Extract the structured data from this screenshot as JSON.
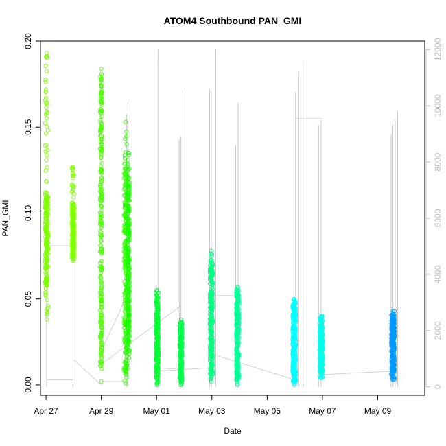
{
  "chart_data": {
    "type": "scatter",
    "title": "ATOM4 Southbound PAN_GMI",
    "xlabel": "Date",
    "ylabel": "PAN_GMI",
    "x_ticks": [
      {
        "label": "Apr 27",
        "day": 0
      },
      {
        "label": "Apr 29",
        "day": 2
      },
      {
        "label": "May 01",
        "day": 4
      },
      {
        "label": "May 03",
        "day": 6
      },
      {
        "label": "May 05",
        "day": 8
      },
      {
        "label": "May 07",
        "day": 10
      },
      {
        "label": "May 09",
        "day": 12
      }
    ],
    "xlim_days": [
      -0.2,
      13.7
    ],
    "ylim": [
      -0.006,
      0.2
    ],
    "y_ticks": [
      "0.00",
      "0.05",
      "0.10",
      "0.15",
      "0.20"
    ],
    "y2_ticks": [
      "0",
      "2000",
      "4000",
      "6000",
      "8000",
      "10000",
      "12000"
    ],
    "y2lim": [
      -300,
      12300
    ],
    "y2_color": "#bebebe",
    "grey_line_color": "#c8c8c8",
    "clusters": [
      {
        "center_day": 0.02,
        "min": 0.038,
        "max": 0.193,
        "core_min": 0.058,
        "core_max": 0.112,
        "color": "#7fff00",
        "dx": 0.055
      },
      {
        "center_day": 0.98,
        "min": 0.072,
        "max": 0.127,
        "core_min": 0.075,
        "core_max": 0.105,
        "color": "#7fff00",
        "dx": 0.04
      },
      {
        "center_day": 2.0,
        "min": 0.002,
        "max": 0.184,
        "core_min": 0.01,
        "core_max": 0.18,
        "color": "#4cff00",
        "dx": 0.04
      },
      {
        "center_day": 2.88,
        "min": 0.001,
        "max": 0.153,
        "core_min": 0.008,
        "core_max": 0.13,
        "color": "#33ff00",
        "dx": 0.05
      },
      {
        "center_day": 2.98,
        "min": 0.01,
        "max": 0.135,
        "core_min": 0.02,
        "core_max": 0.12,
        "color": "#1aff00",
        "dx": 0.04
      },
      {
        "center_day": 4.02,
        "min": 0.0,
        "max": 0.055,
        "core_min": 0.003,
        "core_max": 0.05,
        "color": "#00ff33",
        "dx": 0.05
      },
      {
        "center_day": 4.88,
        "min": 0.0,
        "max": 0.038,
        "core_min": 0.002,
        "core_max": 0.036,
        "color": "#00ff4c",
        "dx": 0.05
      },
      {
        "center_day": 5.98,
        "min": 0.002,
        "max": 0.078,
        "core_min": 0.005,
        "core_max": 0.073,
        "color": "#00ff80",
        "dx": 0.055
      },
      {
        "center_day": 6.93,
        "min": 0.0,
        "max": 0.057,
        "core_min": 0.003,
        "core_max": 0.055,
        "color": "#00ff99",
        "dx": 0.05
      },
      {
        "center_day": 8.98,
        "min": 0.0,
        "max": 0.05,
        "core_min": 0.002,
        "core_max": 0.048,
        "color": "#00ffff",
        "dx": 0.065
      },
      {
        "center_day": 9.95,
        "min": 0.004,
        "max": 0.04,
        "core_min": 0.006,
        "core_max": 0.038,
        "color": "#00ffea",
        "dx": 0.055
      },
      {
        "center_day": 12.55,
        "min": 0.003,
        "max": 0.043,
        "core_min": 0.006,
        "core_max": 0.041,
        "color": "#0099ff",
        "dx": 0.06
      }
    ],
    "grey_spikes": [
      {
        "day": 0.02,
        "top": 5000
      },
      {
        "day": 0.98,
        "top": 4900
      },
      {
        "day": 2.96,
        "top": 10100
      },
      {
        "day": 2.92,
        "top": 9700
      },
      {
        "day": 3.98,
        "top": 11600
      },
      {
        "day": 4.05,
        "top": 12000
      },
      {
        "day": 4.82,
        "top": 8800
      },
      {
        "day": 4.88,
        "top": 8900
      },
      {
        "day": 4.95,
        "top": 10600
      },
      {
        "day": 5.92,
        "top": 10600
      },
      {
        "day": 5.98,
        "top": 10500
      },
      {
        "day": 6.14,
        "top": 12000
      },
      {
        "day": 6.86,
        "top": 8600
      },
      {
        "day": 6.95,
        "top": 10100
      },
      {
        "day": 9.03,
        "top": 10500
      },
      {
        "day": 9.14,
        "top": 11200
      },
      {
        "day": 9.3,
        "top": 11600
      },
      {
        "day": 9.86,
        "top": 9300
      },
      {
        "day": 9.95,
        "top": 9500
      },
      {
        "day": 12.48,
        "top": 9000
      },
      {
        "day": 12.55,
        "top": 9300
      },
      {
        "day": 12.63,
        "top": 9500
      },
      {
        "day": 12.72,
        "top": 9800
      }
    ],
    "grey_connectors": [
      [
        [
          0.05,
          0.003
        ],
        [
          0.98,
          0.003
        ]
      ],
      [
        [
          0.98,
          0.003
        ],
        [
          0.98,
          0.081
        ]
      ],
      [
        [
          0.05,
          0.081
        ],
        [
          0.98,
          0.081
        ]
      ],
      [
        [
          0.98,
          0.015
        ],
        [
          2.0,
          0.0
        ]
      ],
      [
        [
          2.0,
          0.002
        ],
        [
          2.88,
          0.002
        ]
      ],
      [
        [
          2.0,
          0.012
        ],
        [
          4.88,
          0.046
        ]
      ],
      [
        [
          2.0,
          0.02
        ],
        [
          2.88,
          0.05
        ]
      ],
      [
        [
          4.02,
          0.01
        ],
        [
          4.88,
          0.009
        ]
      ],
      [
        [
          4.02,
          0.008
        ],
        [
          5.98,
          0.01
        ]
      ],
      [
        [
          5.98,
          0.018
        ],
        [
          9.0,
          0.003
        ]
      ],
      [
        [
          5.98,
          0.052
        ],
        [
          6.93,
          0.052
        ]
      ],
      [
        [
          9.0,
          0.155
        ],
        [
          9.98,
          0.155
        ]
      ],
      [
        [
          9.95,
          0.006
        ],
        [
          12.55,
          0.008
        ]
      ]
    ]
  }
}
